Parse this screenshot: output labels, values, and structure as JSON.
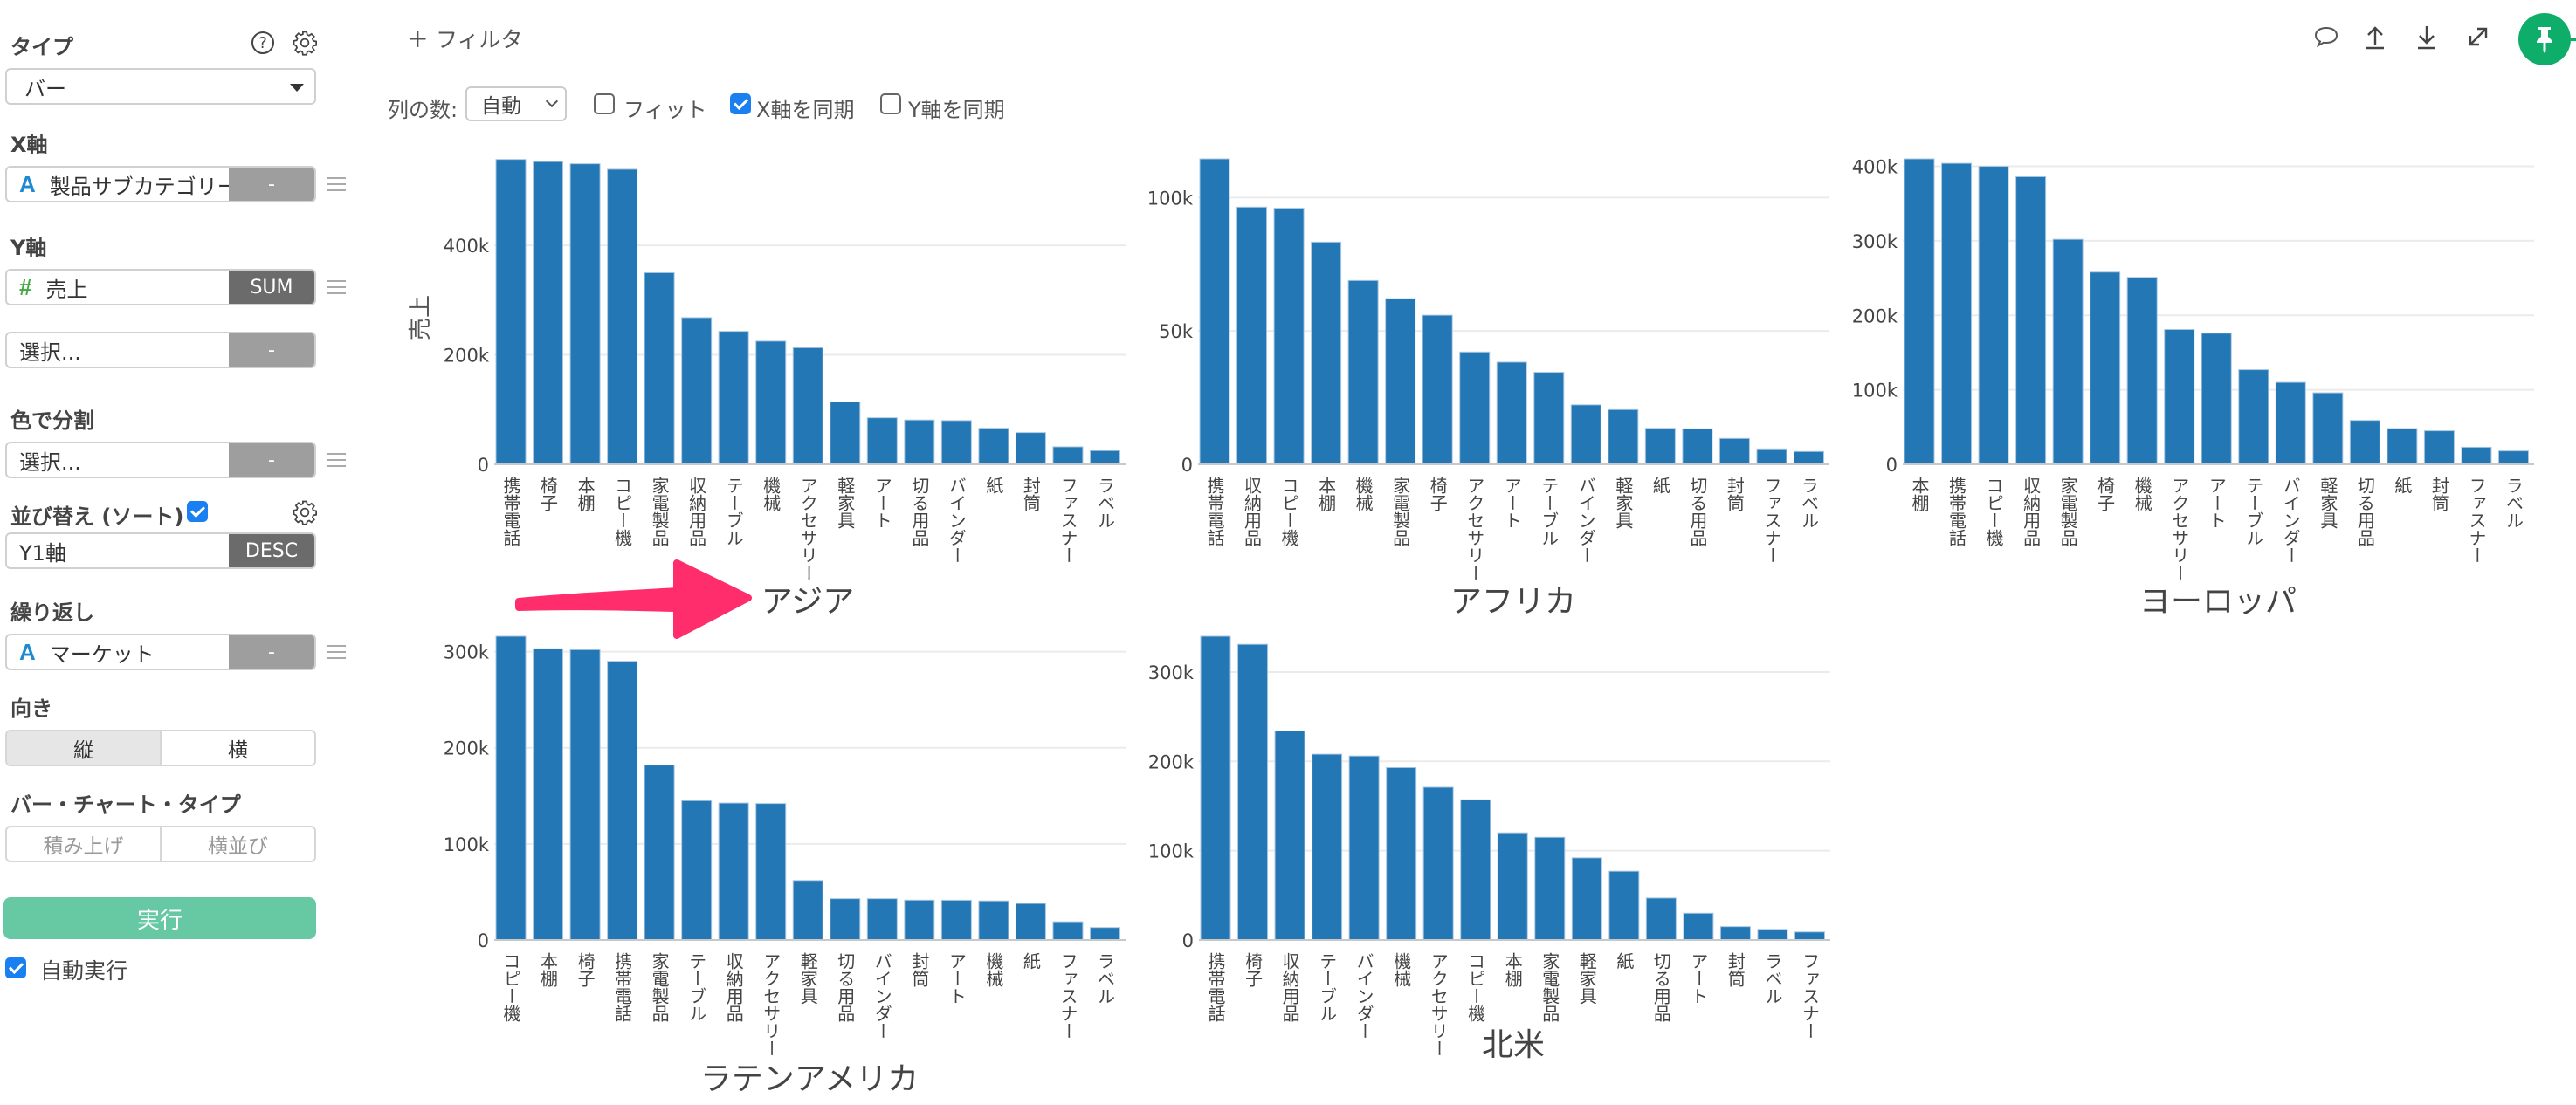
{
  "sidebar": {
    "type_label": "タイプ",
    "help_icon": "question-circle-icon",
    "settings_icon": "gear-icon",
    "type_value": "バー",
    "x_axis_label": "X軸",
    "x_axis_field": "製品サブカテゴリー",
    "x_axis_field_type": "A",
    "x_axis_agg": "-",
    "y_axis_label": "Y軸",
    "y_axis_field": "売上",
    "y_axis_field_type": "#",
    "y_axis_agg": "SUM",
    "y2_placeholder": "選択...",
    "y2_agg": "-",
    "color_label": "色で分割",
    "color_placeholder": "選択...",
    "color_agg": "-",
    "sort_label": "並び替え (ソート)",
    "sort_checked": true,
    "sort_field": "Y1軸",
    "sort_order": "DESC",
    "repeat_label": "繰り返し",
    "repeat_field": "マーケット",
    "repeat_field_type": "A",
    "repeat_agg": "-",
    "orientation_label": "向き",
    "orientation_options": [
      "縦",
      "横"
    ],
    "orientation_selected": "縦",
    "bar_type_label": "バー・チャート・タイプ",
    "bar_type_options": [
      "積み上げ",
      "横並び"
    ],
    "run_button": "実行",
    "auto_run_label": "自動実行",
    "auto_run_checked": true
  },
  "toolbar": {
    "filter_label": "＋ フィルタ",
    "columns_label": "列の数:",
    "columns_value": "自動",
    "fit_label": "フィット",
    "fit_checked": false,
    "sync_x_label": "X軸を同期",
    "sync_x_checked": true,
    "sync_y_label": "Y軸を同期",
    "sync_y_checked": false,
    "icons": [
      "comment-icon",
      "upload-icon",
      "download-icon",
      "expand-icon",
      "pin-icon"
    ]
  },
  "colors": {
    "bar": "#2277b4",
    "run_button": "#66c9a3",
    "pin_button": "#0ead69",
    "annotation_arrow": "#ff2d6b",
    "checkbox": "#1a7ff0"
  },
  "chart_data": [
    {
      "type": "bar",
      "title": "アジア",
      "ylabel": "売上",
      "xlabel": "",
      "ylim": [
        0,
        558000
      ],
      "yticks": [
        0,
        200000,
        400000
      ],
      "ytick_labels": [
        "0",
        "200k",
        "400k"
      ],
      "grid": true,
      "categories": [
        "携帯電話",
        "椅子",
        "本棚",
        "コピー機",
        "家電製品",
        "収納用品",
        "テーブル",
        "機械",
        "アクセサリー",
        "軽家具",
        "アート",
        "切る用品",
        "バインダー",
        "紙",
        "封筒",
        "ファスナー",
        "ラベル"
      ],
      "values": [
        557000,
        553000,
        549000,
        539000,
        350000,
        268000,
        243000,
        225000,
        213000,
        114000,
        85000,
        81000,
        80000,
        66000,
        58000,
        32000,
        25000
      ]
    },
    {
      "type": "bar",
      "title": "アフリカ",
      "ylabel": "",
      "xlabel": "",
      "ylim": [
        0,
        114500
      ],
      "yticks": [
        0,
        50000,
        100000
      ],
      "ytick_labels": [
        "0",
        "50k",
        "100k"
      ],
      "grid": true,
      "categories": [
        "携帯電話",
        "収納用品",
        "コピー機",
        "本棚",
        "機械",
        "家電製品",
        "椅子",
        "アクセサリー",
        "アート",
        "テーブル",
        "バインダー",
        "軽家具",
        "紙",
        "切る用品",
        "封筒",
        "ファスナー",
        "ラベル"
      ],
      "values": [
        114500,
        96400,
        96000,
        83300,
        68900,
        62100,
        55900,
        42100,
        38300,
        34500,
        22300,
        20500,
        13500,
        13300,
        9700,
        5800,
        4800
      ]
    },
    {
      "type": "bar",
      "title": "ヨーロッパ",
      "ylabel": "",
      "xlabel": "",
      "ylim": [
        0,
        410000
      ],
      "yticks": [
        0,
        100000,
        200000,
        300000,
        400000
      ],
      "ytick_labels": [
        "0",
        "100k",
        "200k",
        "300k",
        "400k"
      ],
      "grid": true,
      "categories": [
        "本棚",
        "携帯電話",
        "コピー機",
        "収納用品",
        "家電製品",
        "椅子",
        "機械",
        "アクセサリー",
        "アート",
        "テーブル",
        "バインダー",
        "軽家具",
        "切る用品",
        "紙",
        "封筒",
        "ファスナー",
        "ラベル"
      ],
      "values": [
        410000,
        404000,
        400000,
        386000,
        302000,
        258000,
        251000,
        181000,
        176000,
        127000,
        110000,
        96000,
        59000,
        48000,
        45000,
        23000,
        18000
      ]
    },
    {
      "type": "bar",
      "title": "ラテンアメリカ",
      "ylabel": "",
      "xlabel": "",
      "ylim": [
        0,
        316000
      ],
      "yticks": [
        0,
        100000,
        200000,
        300000
      ],
      "ytick_labels": [
        "0",
        "100k",
        "200k",
        "300k"
      ],
      "grid": true,
      "categories": [
        "コピー機",
        "本棚",
        "椅子",
        "携帯電話",
        "家電製品",
        "テーブル",
        "収納用品",
        "アクセサリー",
        "軽家具",
        "切る用品",
        "バインダー",
        "封筒",
        "アート",
        "機械",
        "紙",
        "ファスナー",
        "ラベル"
      ],
      "values": [
        316000,
        303000,
        302000,
        290000,
        182000,
        145000,
        142500,
        142000,
        62000,
        43000,
        43000,
        41500,
        41400,
        40700,
        38000,
        19000,
        13000
      ]
    },
    {
      "type": "bar",
      "title": "北米",
      "ylabel": "",
      "xlabel": "",
      "ylim": [
        0,
        340000
      ],
      "yticks": [
        0,
        100000,
        200000,
        300000
      ],
      "ytick_labels": [
        "0",
        "100k",
        "200k",
        "300k"
      ],
      "grid": true,
      "categories": [
        "携帯電話",
        "椅子",
        "収納用品",
        "テーブル",
        "バインダー",
        "機械",
        "アクセサリー",
        "コピー機",
        "本棚",
        "家電製品",
        "軽家具",
        "紙",
        "切る用品",
        "アート",
        "封筒",
        "ラベル",
        "ファスナー"
      ],
      "values": [
        340000,
        331000,
        234000,
        208000,
        206000,
        193000,
        171000,
        157000,
        120000,
        115000,
        92000,
        77000,
        47000,
        30000,
        15000,
        12000,
        9000
      ]
    }
  ]
}
